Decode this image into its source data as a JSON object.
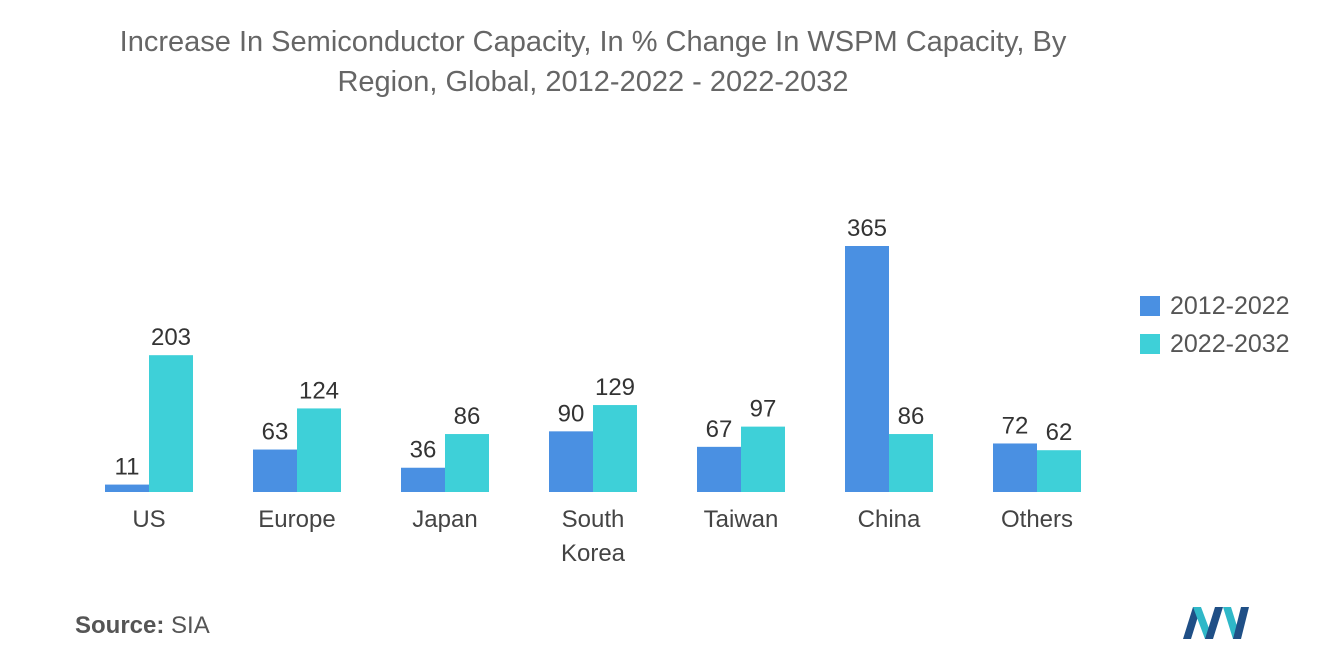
{
  "title_lines": [
    "Increase In Semiconductor Capacity, In % Change In WSPM Capacity, By",
    "Region, Global, 2012-2022 - 2022-2032"
  ],
  "colors": {
    "series1": "#4a90e2",
    "series2": "#3ed0d8"
  },
  "chart_data": {
    "type": "bar",
    "title": "Increase In Semiconductor Capacity, In % Change In WSPM Capacity, By Region, Global, 2012-2022 - 2022-2032",
    "categories": [
      [
        "US"
      ],
      [
        "Europe"
      ],
      [
        "Japan"
      ],
      [
        "South",
        "Korea"
      ],
      [
        "Taiwan"
      ],
      [
        "China"
      ],
      [
        "Others"
      ]
    ],
    "series": [
      {
        "name": "2012-2022",
        "values": [
          11,
          63,
          36,
          90,
          67,
          365,
          72
        ]
      },
      {
        "name": "2022-2032",
        "values": [
          203,
          124,
          86,
          129,
          97,
          86,
          62
        ]
      }
    ],
    "ylim": [
      0,
      365
    ],
    "xlabel": "",
    "ylabel": "",
    "grid": false,
    "legend": "right"
  },
  "legend": [
    "2012-2022",
    "2022-2032"
  ],
  "source": {
    "label": "Source:",
    "value": "SIA"
  }
}
